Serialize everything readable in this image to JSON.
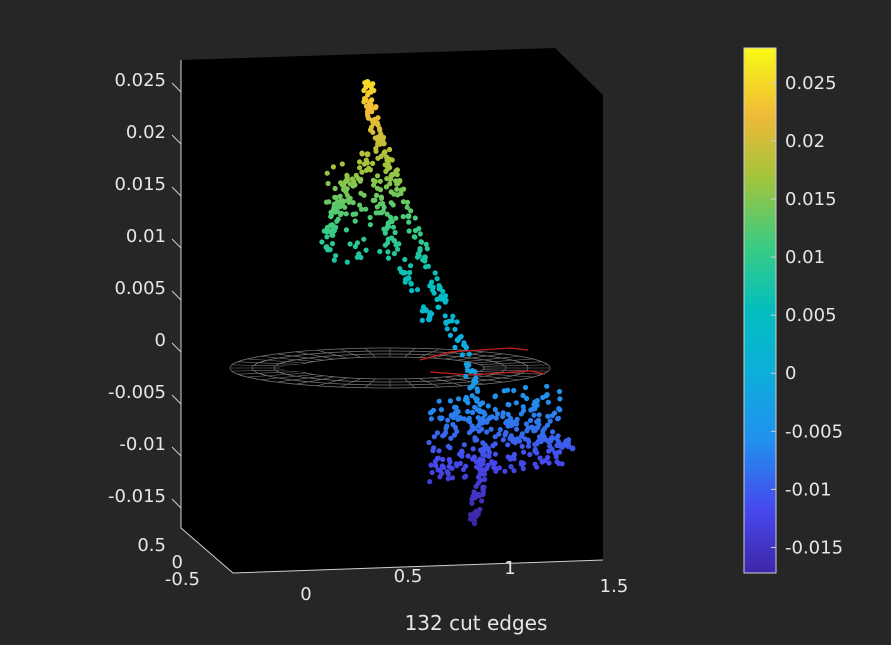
{
  "chart_data": {
    "type": "scatter",
    "subtype": "3d-scatter-with-surface-mesh",
    "xlabel": "132 cut edges",
    "ylabel": "",
    "zlabel": "",
    "x_ticks": [
      "0",
      "0.5",
      "1",
      "1.5"
    ],
    "y_ticks": [
      "0.5",
      "0",
      "-0.5"
    ],
    "z_ticks": [
      "0.025",
      "0.02",
      "0.015",
      "0.01",
      "0.005",
      "0",
      "-0.005",
      "-0.01",
      "-0.015"
    ],
    "xlim": [
      -0.35,
      1.5
    ],
    "zlim": [
      -0.019,
      0.027
    ],
    "colorbar": {
      "colormap": "parula",
      "ticks": [
        "0.025",
        "0.02",
        "0.015",
        "0.01",
        "0.005",
        "0",
        "-0.005",
        "-0.01",
        "-0.015"
      ],
      "range": [
        -0.0172,
        0.028
      ]
    },
    "colors": {
      "background": "#262626",
      "axes_background": "#000000",
      "text": "#e6e6e6",
      "mesh": "#7a7a7a",
      "cut_edges": "#cc1f1f"
    },
    "grid": false,
    "series": [
      {
        "values": [
          {
            "x": 0.3,
            "z": 0.025
          },
          {
            "x": 0.31,
            "z": 0.023
          },
          {
            "x": 0.33,
            "z": 0.021
          },
          {
            "x": 0.36,
            "z": 0.019
          },
          {
            "x": 0.42,
            "z": 0.016
          },
          {
            "x": 0.5,
            "z": 0.012
          },
          {
            "x": 0.58,
            "z": 0.008
          },
          {
            "x": 0.66,
            "z": 0.004
          },
          {
            "x": 0.74,
            "z": 0.0
          },
          {
            "x": 0.82,
            "z": -0.004
          },
          {
            "x": 0.86,
            "z": -0.008
          },
          {
            "x": 0.86,
            "z": -0.012
          },
          {
            "x": 0.84,
            "z": -0.015
          },
          {
            "x": 0.82,
            "z": -0.0175
          },
          {
            "x": 0.2,
            "z": 0.0155
          },
          {
            "x": 0.15,
            "z": 0.0125
          },
          {
            "x": 0.1,
            "z": 0.009
          },
          {
            "x": 0.3,
            "z": 0.018
          },
          {
            "x": 0.4,
            "z": 0.011
          },
          {
            "x": 0.5,
            "z": 0.006
          },
          {
            "x": 0.6,
            "z": 0.002
          },
          {
            "x": 1.0,
            "z": -0.008
          },
          {
            "x": 1.2,
            "z": -0.0095
          },
          {
            "x": 1.3,
            "z": -0.0105
          }
        ]
      }
    ]
  }
}
